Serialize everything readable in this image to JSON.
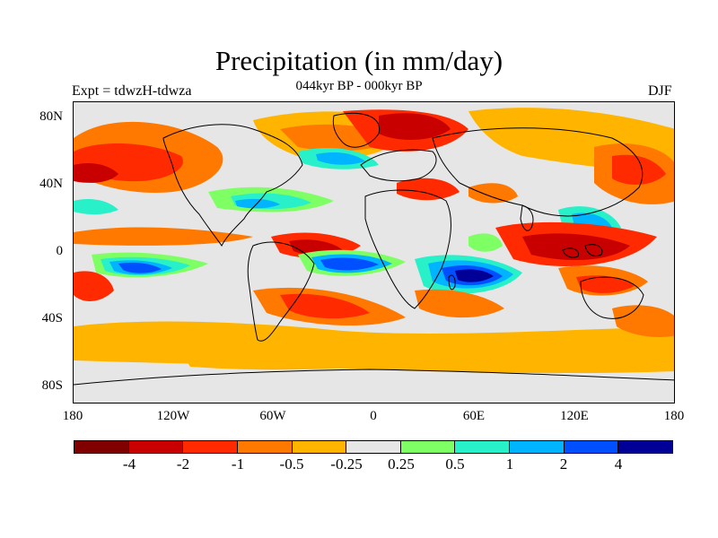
{
  "title": "Precipitation (in mm/day)",
  "subtitle": "044kyr BP - 000kyr BP",
  "experiment": "Expt = tdwzH-tdwza",
  "season": "DJF",
  "map": {
    "y_ticks": [
      "80N",
      "40N",
      "0",
      "40S",
      "80S"
    ],
    "x_ticks": [
      "180",
      "120W",
      "60W",
      "0",
      "60E",
      "120E",
      "180"
    ],
    "background": "#e6e6e6",
    "coastline_color": "#000000"
  },
  "colorbar": {
    "colors": [
      "#800000",
      "#c80000",
      "#ff2a00",
      "#ff7800",
      "#ffb400",
      "#e6e6e6",
      "#7eff64",
      "#28f0c8",
      "#00b4ff",
      "#0050ff",
      "#000096"
    ],
    "labels": [
      "-4",
      "-2",
      "-1",
      "-0.5",
      "-0.25",
      "0.25",
      "0.5",
      "1",
      "2",
      "4"
    ]
  }
}
